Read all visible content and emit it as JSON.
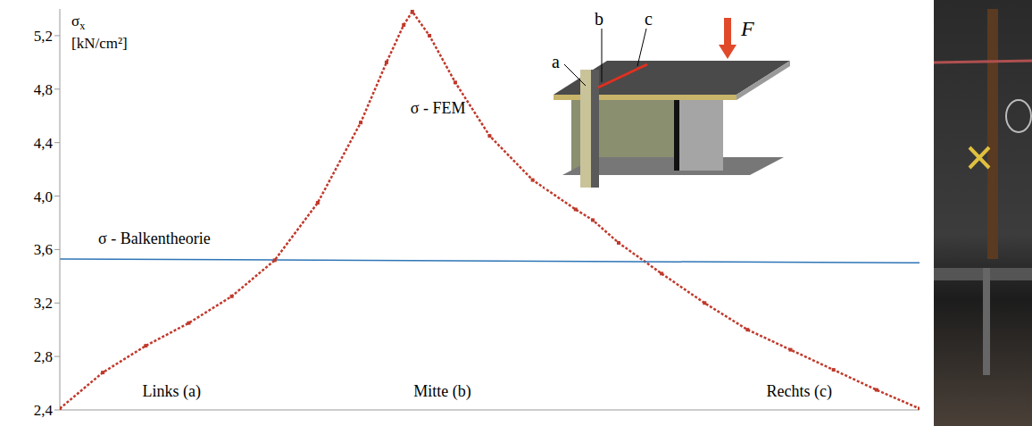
{
  "chart_data": {
    "type": "line",
    "ylabel": "σx [kN/cm²]",
    "xlim": [
      0,
      100
    ],
    "ylim": [
      2.4,
      5.4
    ],
    "yticks": [
      {
        "value": 2.4,
        "label": "2,4"
      },
      {
        "value": 2.8,
        "label": "2,8"
      },
      {
        "value": 3.2,
        "label": "3,2"
      },
      {
        "value": 3.6,
        "label": "3,6"
      },
      {
        "value": 4.0,
        "label": "4,0"
      },
      {
        "value": 4.4,
        "label": "4,4"
      },
      {
        "value": 4.8,
        "label": "4,8"
      },
      {
        "value": 5.2,
        "label": "5,2"
      }
    ],
    "tick_labels": "y",
    "grid": false,
    "series": [
      {
        "name": "σ - FEM",
        "color": "#c0392b",
        "marker": "square",
        "line_style": "dotted",
        "label_pos": [
          44,
          4.62
        ],
        "x": [
          0,
          5,
          10,
          15,
          20,
          25,
          30,
          35,
          38,
          40,
          41,
          43,
          46,
          50,
          55,
          60,
          62,
          65,
          70,
          75,
          80,
          85,
          90,
          95,
          100
        ],
        "values": [
          2.41,
          2.68,
          2.88,
          3.05,
          3.25,
          3.52,
          3.95,
          4.55,
          5.0,
          5.28,
          5.38,
          5.2,
          4.85,
          4.45,
          4.12,
          3.9,
          3.82,
          3.65,
          3.42,
          3.2,
          3.0,
          2.85,
          2.7,
          2.55,
          2.41
        ]
      },
      {
        "name": "σ - Balkentheorie",
        "color": "#2e75b6",
        "marker": "none",
        "line_style": "solid",
        "label_pos": [
          11,
          3.64
        ],
        "x": [
          0,
          100
        ],
        "values": [
          3.53,
          3.5
        ]
      }
    ],
    "annotations": [
      {
        "text": "Links (a)",
        "x": 13,
        "y": 2.5
      },
      {
        "text": "Mitte (b)",
        "x": 44.5,
        "y": 2.5
      },
      {
        "text": "Rechts (c)",
        "x": 86,
        "y": 2.5
      }
    ],
    "inset": {
      "labels": [
        "a",
        "b",
        "c"
      ],
      "force": "F"
    }
  }
}
